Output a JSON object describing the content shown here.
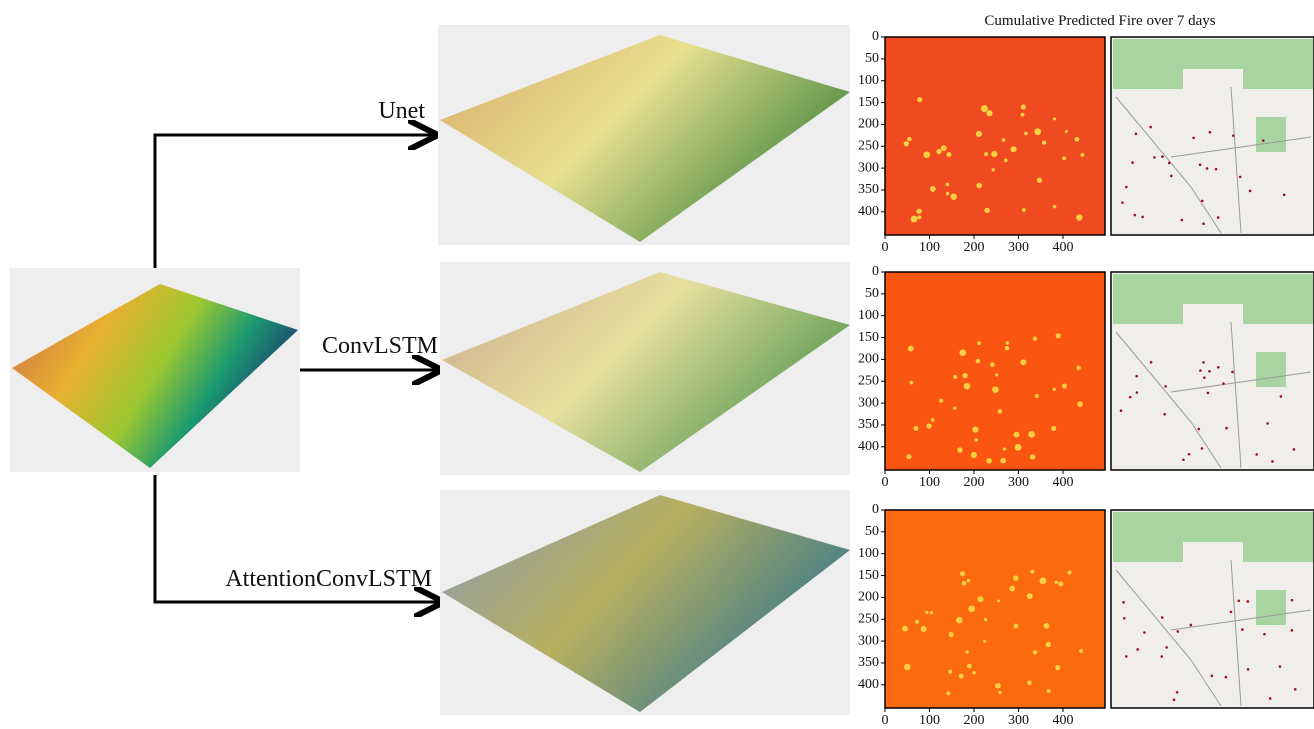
{
  "title": "Cumulative Predicted Fire over 7 days",
  "models": [
    {
      "label": "Unet",
      "heatmap": {
        "xticks": [
          0,
          100,
          200,
          300,
          400
        ],
        "yticks": [
          0,
          50,
          100,
          150,
          200,
          250,
          300,
          350,
          400
        ]
      }
    },
    {
      "label": "ConvLSTM",
      "heatmap": {
        "xticks": [
          0,
          100,
          200,
          300,
          400
        ],
        "yticks": [
          0,
          50,
          100,
          150,
          200,
          250,
          300,
          350,
          400
        ]
      }
    },
    {
      "label": "AttentionConvLSTM",
      "heatmap": {
        "xticks": [
          0,
          100,
          200,
          300,
          400
        ],
        "yticks": [
          0,
          50,
          100,
          150,
          200,
          250,
          300,
          350,
          400
        ]
      }
    }
  ]
}
